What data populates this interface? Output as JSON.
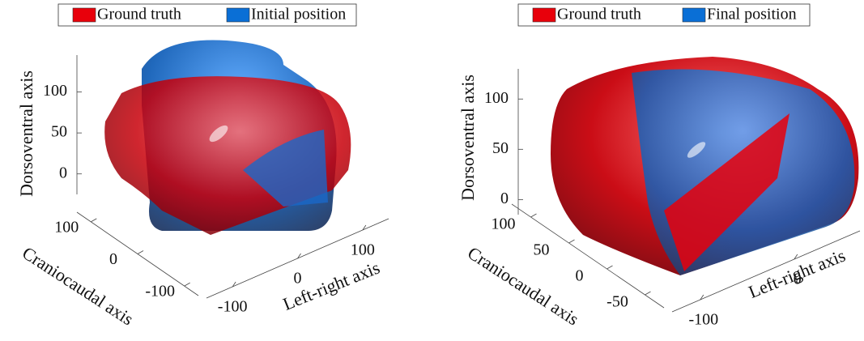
{
  "chart_data": [
    {
      "type": "surface3d",
      "series": [
        {
          "name": "Ground truth",
          "color": "#e8000b"
        },
        {
          "name": "Initial position",
          "color": "#0a6fd6"
        }
      ],
      "zlabel": "Dorsoventral axis",
      "ylabel": "Craniocaudal axis",
      "xlabel": "Left-right axis",
      "zlim": [
        -25,
        145
      ],
      "zticks": [
        0,
        50,
        100
      ],
      "ylim": [
        -130,
        130
      ],
      "yticks": [
        -100,
        0,
        100
      ],
      "xlim": [
        -140,
        140
      ],
      "xticks": [
        -100,
        0,
        100
      ]
    },
    {
      "type": "surface3d",
      "series": [
        {
          "name": "Ground truth",
          "color": "#e8000b"
        },
        {
          "name": "Final position",
          "color": "#0a6fd6"
        }
      ],
      "zlabel": "Dorsoventral axis",
      "ylabel": "Craniocaudal axis",
      "xlabel": "Left-right axis",
      "zlim": [
        -15,
        130
      ],
      "zticks": [
        0,
        50,
        100
      ],
      "ylim": [
        -75,
        125
      ],
      "yticks": [
        -50,
        0,
        50,
        100
      ],
      "xlim": [
        -130,
        70
      ],
      "xticks": [
        -100,
        0
      ]
    }
  ]
}
